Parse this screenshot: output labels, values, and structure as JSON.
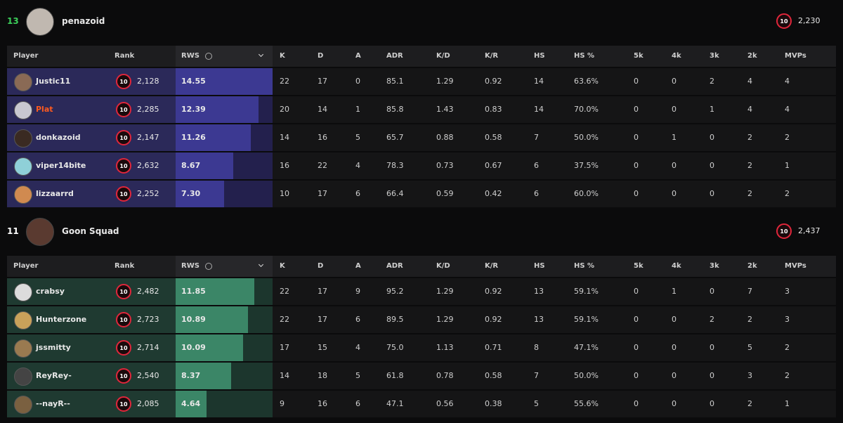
{
  "columns": [
    "Player",
    "Rank",
    "RWS",
    "K",
    "D",
    "A",
    "ADR",
    "K/D",
    "K/R",
    "HS",
    "HS %",
    "5k",
    "4k",
    "3k",
    "2k",
    "MVPs"
  ],
  "teams": [
    {
      "score": "13",
      "name": "penazoid",
      "level": "10",
      "elo": "2,230",
      "players": [
        {
          "name": "Justic11",
          "level": "10",
          "elo": "2,128",
          "rws": "14.55",
          "stats": [
            "22",
            "17",
            "0",
            "85.1",
            "1.29",
            "0.92",
            "14",
            "63.6%",
            "0",
            "0",
            "2",
            "4",
            "4"
          ]
        },
        {
          "name": "Plat",
          "level": "10",
          "elo": "2,285",
          "rws": "12.39",
          "stats": [
            "20",
            "14",
            "1",
            "85.8",
            "1.43",
            "0.83",
            "14",
            "70.0%",
            "0",
            "0",
            "1",
            "4",
            "4"
          ]
        },
        {
          "name": "donkazoid",
          "level": "10",
          "elo": "2,147",
          "rws": "11.26",
          "stats": [
            "14",
            "16",
            "5",
            "65.7",
            "0.88",
            "0.58",
            "7",
            "50.0%",
            "0",
            "1",
            "0",
            "2",
            "2"
          ]
        },
        {
          "name": "viper14bite",
          "level": "10",
          "elo": "2,632",
          "rws": "8.67",
          "stats": [
            "16",
            "22",
            "4",
            "78.3",
            "0.73",
            "0.67",
            "6",
            "37.5%",
            "0",
            "0",
            "0",
            "2",
            "1"
          ]
        },
        {
          "name": "lizzaarrd",
          "level": "10",
          "elo": "2,252",
          "rws": "7.30",
          "stats": [
            "10",
            "17",
            "6",
            "66.4",
            "0.59",
            "0.42",
            "6",
            "60.0%",
            "0",
            "0",
            "0",
            "2",
            "2"
          ]
        }
      ]
    },
    {
      "score": "11",
      "name": "Goon Squad",
      "level": "10",
      "elo": "2,437",
      "players": [
        {
          "name": "crabsy",
          "level": "10",
          "elo": "2,482",
          "rws": "11.85",
          "stats": [
            "22",
            "17",
            "9",
            "95.2",
            "1.29",
            "0.92",
            "13",
            "59.1%",
            "0",
            "1",
            "0",
            "7",
            "3"
          ]
        },
        {
          "name": "Hunterzone",
          "level": "10",
          "elo": "2,723",
          "rws": "10.89",
          "stats": [
            "22",
            "17",
            "6",
            "89.5",
            "1.29",
            "0.92",
            "13",
            "59.1%",
            "0",
            "0",
            "2",
            "2",
            "3"
          ]
        },
        {
          "name": "jssmitty",
          "level": "10",
          "elo": "2,714",
          "rws": "10.09",
          "stats": [
            "17",
            "15",
            "4",
            "75.0",
            "1.13",
            "0.71",
            "8",
            "47.1%",
            "0",
            "0",
            "0",
            "5",
            "2"
          ]
        },
        {
          "name": "ReyRey-",
          "level": "10",
          "elo": "2,540",
          "rws": "8.37",
          "stats": [
            "14",
            "18",
            "5",
            "61.8",
            "0.78",
            "0.58",
            "7",
            "50.0%",
            "0",
            "0",
            "0",
            "3",
            "2"
          ]
        },
        {
          "name": "--nayR--",
          "level": "10",
          "elo": "2,085",
          "rws": "4.64",
          "stats": [
            "9",
            "16",
            "6",
            "47.1",
            "0.56",
            "0.38",
            "5",
            "55.6%",
            "0",
            "0",
            "0",
            "2",
            "1"
          ]
        }
      ]
    }
  ]
}
